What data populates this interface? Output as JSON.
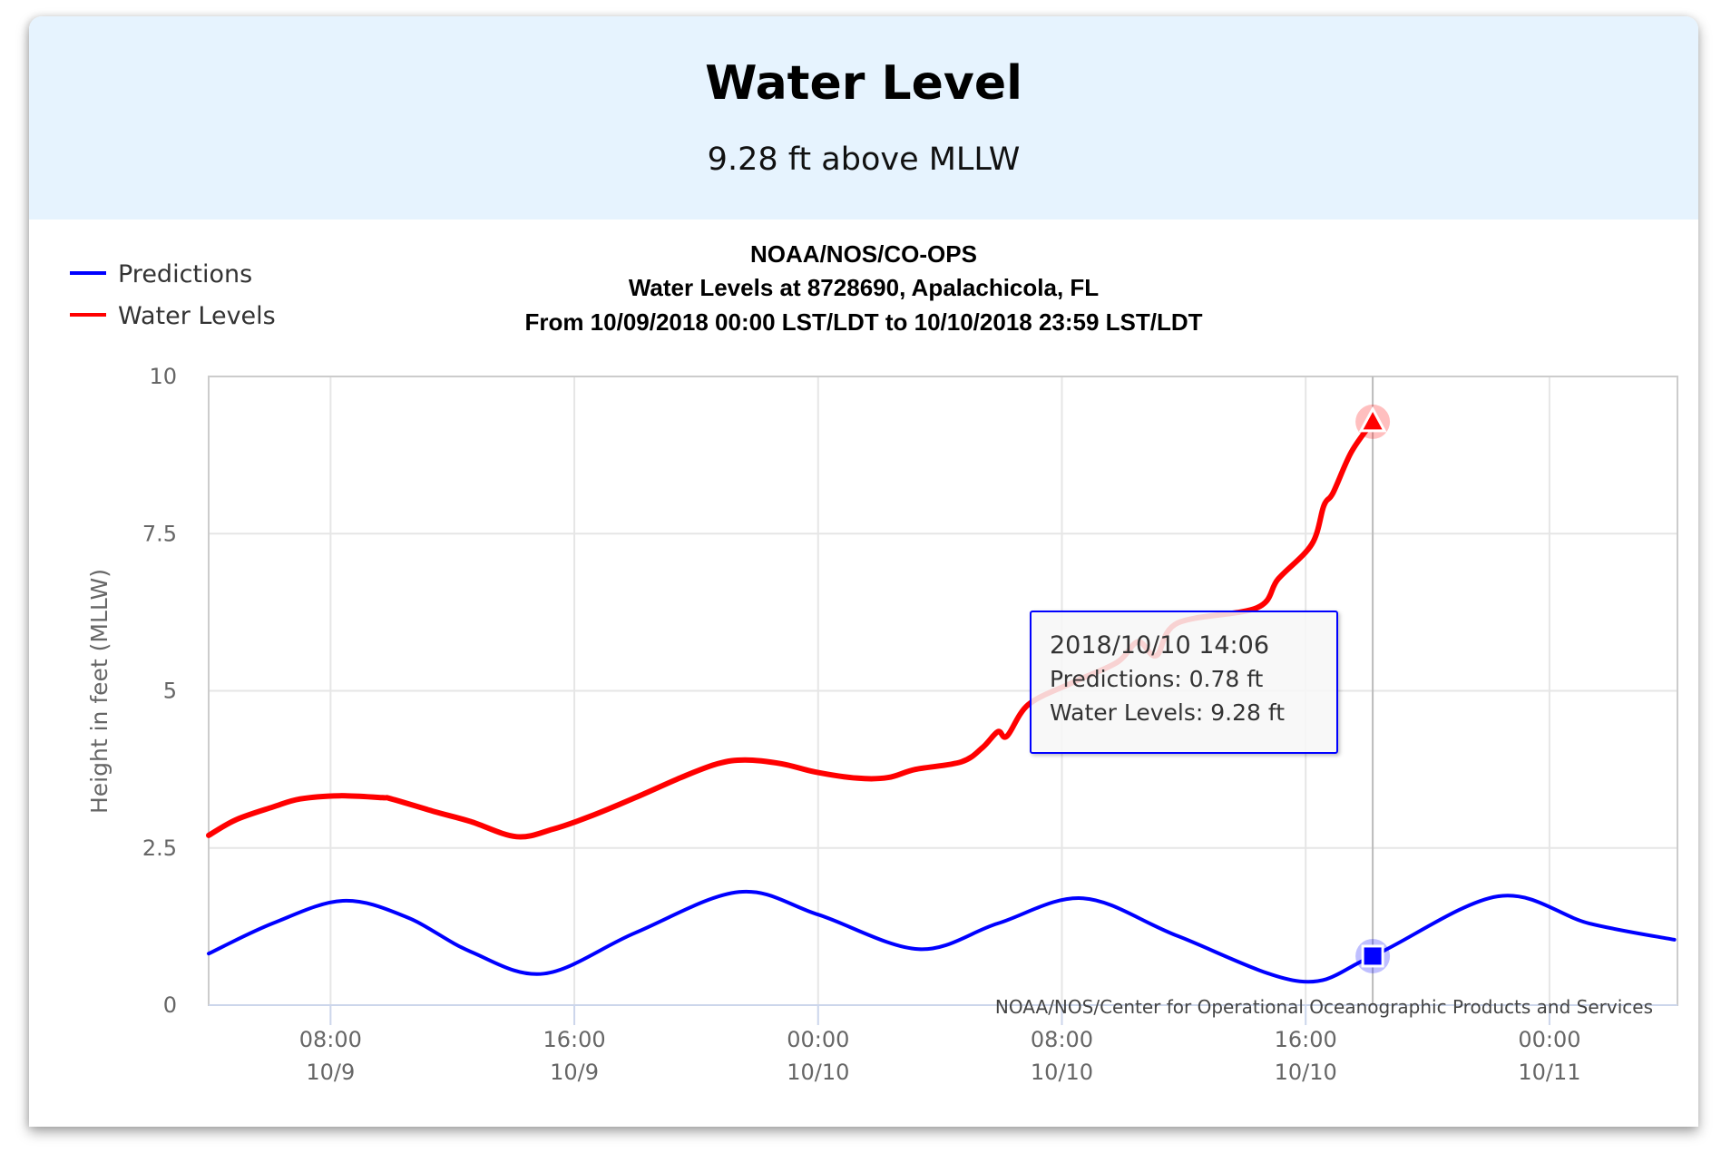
{
  "header": {
    "title": "Water Level",
    "subtitle": "9.28 ft above MLLW"
  },
  "colors": {
    "header_bg": "#e6f3fe",
    "predictions": "#0000ff",
    "water_levels": "#ff0000"
  },
  "tooltip": {
    "time": "2018/10/10 14:06",
    "predictions": "Predictions: 0.78 ft",
    "water_levels": "Water Levels: 9.28 ft"
  },
  "chart_data": {
    "type": "line",
    "title_lines": [
      "NOAA/NOS/CO-OPS",
      "Water Levels at 8728690, Apalachicola, FL",
      "From 10/09/2018 00:00 LST/LDT to 10/10/2018 23:59 LST/LDT"
    ],
    "ylabel": "Height in feet (MLLW)",
    "xlabel": "",
    "x_units": "hours since 10/09/2018 00:00",
    "xlim": [
      4.0,
      52.2
    ],
    "ylim": [
      0,
      10
    ],
    "yticks": [
      {
        "value": 0,
        "label": "0"
      },
      {
        "value": 2.5,
        "label": "2.5"
      },
      {
        "value": 5,
        "label": "5"
      },
      {
        "value": 7.5,
        "label": "7.5"
      },
      {
        "value": 10,
        "label": "10"
      }
    ],
    "xticks": [
      {
        "value": 8,
        "time": "08:00",
        "date": "10/9"
      },
      {
        "value": 16,
        "time": "16:00",
        "date": "10/9"
      },
      {
        "value": 24,
        "time": "00:00",
        "date": "10/10"
      },
      {
        "value": 32,
        "time": "08:00",
        "date": "10/10"
      },
      {
        "value": 40,
        "time": "16:00",
        "date": "10/10"
      },
      {
        "value": 48,
        "time": "00:00",
        "date": "10/11"
      }
    ],
    "grid": true,
    "legend_position": "top-left",
    "credit": "NOAA/NOS/Center for Operational Oceanographic Products and Services",
    "highlight_x": 42.2,
    "series": [
      {
        "name": "Predictions",
        "marker": "square",
        "x": [
          4.0,
          6.1,
          8.4,
          10.5,
          12.6,
          15.0,
          18.0,
          21.4,
          24.0,
          27.3,
          29.9,
          32.7,
          35.8,
          39.8,
          42.2,
          46.3,
          49.3,
          52.1
        ],
        "values": [
          0.82,
          1.3,
          1.66,
          1.4,
          0.85,
          0.5,
          1.15,
          1.8,
          1.44,
          0.89,
          1.3,
          1.7,
          1.1,
          0.38,
          0.78,
          1.73,
          1.3,
          1.04
        ]
      },
      {
        "name": "Water Levels",
        "marker": "triangle",
        "x": [
          4.0,
          4.9,
          6.1,
          7.0,
          8.3,
          9.7,
          10.0,
          11.4,
          12.6,
          14.1,
          15.3,
          16.5,
          18.0,
          19.5,
          20.7,
          21.6,
          22.8,
          23.9,
          25.3,
          26.3,
          27.2,
          28.7,
          29.4,
          29.9,
          30.2,
          30.9,
          32.3,
          33.8,
          34.5,
          35.1,
          35.8,
          38.4,
          39.1,
          40.2,
          40.6,
          40.9,
          41.5,
          42.2
        ],
        "values": [
          2.7,
          2.95,
          3.15,
          3.28,
          3.33,
          3.3,
          3.28,
          3.08,
          2.92,
          2.68,
          2.8,
          3.0,
          3.3,
          3.62,
          3.84,
          3.9,
          3.84,
          3.71,
          3.61,
          3.62,
          3.75,
          3.87,
          4.1,
          4.35,
          4.28,
          4.78,
          5.12,
          5.45,
          5.78,
          5.56,
          6.08,
          6.32,
          6.78,
          7.33,
          7.95,
          8.15,
          8.8,
          9.28
        ]
      }
    ]
  }
}
